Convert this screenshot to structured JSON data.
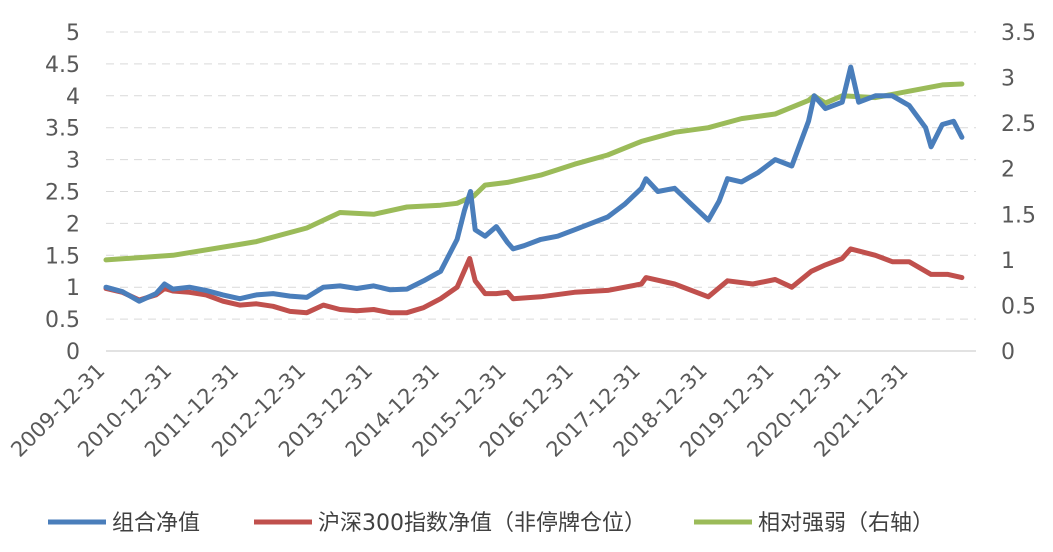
{
  "chart_data": {
    "type": "line",
    "title": "",
    "xlabel": "",
    "ylabel": "",
    "x_tick_labels": [
      "2009-12-31",
      "2010-12-31",
      "2011-12-31",
      "2012-12-31",
      "2013-12-31",
      "2014-12-31",
      "2015-12-31",
      "2016-12-31",
      "2017-12-31",
      "2018-12-31",
      "2019-12-31",
      "2020-12-31",
      "2021-12-31"
    ],
    "y_left": {
      "ticks": [
        "0",
        "0.5",
        "1",
        "1.5",
        "2",
        "2.5",
        "3",
        "3.5",
        "4",
        "4.5",
        "5"
      ],
      "ylim": [
        0,
        5
      ]
    },
    "y_right": {
      "ticks": [
        "0",
        "0.5",
        "1",
        "1.5",
        "2",
        "2.5",
        "3",
        "3.5"
      ],
      "ylim": [
        0,
        3.5
      ]
    },
    "grid": "horizontal-dashed",
    "legend_position": "bottom",
    "series": [
      {
        "name": "组合净值",
        "axis": "left",
        "color": "#4a7ebb",
        "x": [
          "2009-12-31",
          "2010-03-31",
          "2010-06-30",
          "2010-09-30",
          "2010-11-15",
          "2010-12-31",
          "2011-03-31",
          "2011-06-30",
          "2011-09-30",
          "2011-12-31",
          "2012-03-31",
          "2012-06-30",
          "2012-09-30",
          "2012-12-31",
          "2013-03-31",
          "2013-06-30",
          "2013-09-30",
          "2013-12-31",
          "2014-03-31",
          "2014-06-30",
          "2014-09-30",
          "2014-12-31",
          "2015-03-31",
          "2015-05-10",
          "2015-06-12",
          "2015-07-08",
          "2015-08-31",
          "2015-10-31",
          "2015-12-31",
          "2016-01-31",
          "2016-03-31",
          "2016-06-30",
          "2016-09-30",
          "2016-12-31",
          "2017-03-31",
          "2017-06-30",
          "2017-09-30",
          "2017-12-31",
          "2018-01-25",
          "2018-03-31",
          "2018-06-30",
          "2018-09-30",
          "2018-12-31",
          "2019-02-28",
          "2019-04-15",
          "2019-06-30",
          "2019-09-30",
          "2019-12-31",
          "2020-03-31",
          "2020-06-30",
          "2020-07-31",
          "2020-09-30",
          "2020-12-31",
          "2021-02-15",
          "2021-03-31",
          "2021-06-30",
          "2021-09-30",
          "2021-12-31",
          "2022-03-31",
          "2022-04-30",
          "2022-06-30",
          "2022-08-31",
          "2022-10-15"
        ],
        "y": [
          1.0,
          0.93,
          0.78,
          0.9,
          1.05,
          0.97,
          1.0,
          0.95,
          0.88,
          0.82,
          0.88,
          0.9,
          0.86,
          0.84,
          1.0,
          1.02,
          0.98,
          1.02,
          0.96,
          0.97,
          1.1,
          1.25,
          1.75,
          2.2,
          2.5,
          1.9,
          1.8,
          1.95,
          1.7,
          1.6,
          1.65,
          1.75,
          1.8,
          1.9,
          2.0,
          2.1,
          2.3,
          2.55,
          2.7,
          2.5,
          2.55,
          2.3,
          2.05,
          2.35,
          2.7,
          2.65,
          2.8,
          3.0,
          2.9,
          3.6,
          4.0,
          3.8,
          3.9,
          4.45,
          3.9,
          4.0,
          4.0,
          3.85,
          3.5,
          3.2,
          3.55,
          3.6,
          3.35
        ]
      },
      {
        "name": "沪深300指数净值（非停牌仓位）",
        "axis": "left",
        "color": "#c0504d",
        "x": [
          "2009-12-31",
          "2010-03-31",
          "2010-06-30",
          "2010-09-30",
          "2010-11-15",
          "2010-12-31",
          "2011-03-31",
          "2011-06-30",
          "2011-09-30",
          "2011-12-31",
          "2012-03-31",
          "2012-06-30",
          "2012-09-30",
          "2012-12-31",
          "2013-03-31",
          "2013-06-30",
          "2013-09-30",
          "2013-12-31",
          "2014-03-31",
          "2014-06-30",
          "2014-09-30",
          "2014-12-31",
          "2015-03-31",
          "2015-06-08",
          "2015-07-08",
          "2015-08-31",
          "2015-10-31",
          "2015-12-31",
          "2016-01-31",
          "2016-06-30",
          "2016-12-31",
          "2017-06-30",
          "2017-12-31",
          "2018-01-25",
          "2018-06-30",
          "2018-12-31",
          "2019-04-15",
          "2019-08-31",
          "2019-12-31",
          "2020-03-31",
          "2020-07-15",
          "2020-09-30",
          "2020-12-31",
          "2021-02-15",
          "2021-06-30",
          "2021-09-30",
          "2021-12-31",
          "2022-04-30",
          "2022-07-31",
          "2022-10-15"
        ],
        "y": [
          0.98,
          0.92,
          0.8,
          0.88,
          0.98,
          0.94,
          0.92,
          0.88,
          0.78,
          0.72,
          0.74,
          0.7,
          0.62,
          0.6,
          0.72,
          0.65,
          0.63,
          0.65,
          0.6,
          0.6,
          0.68,
          0.82,
          1.0,
          1.45,
          1.1,
          0.9,
          0.9,
          0.92,
          0.82,
          0.85,
          0.92,
          0.95,
          1.05,
          1.15,
          1.05,
          0.85,
          1.1,
          1.05,
          1.12,
          1.0,
          1.25,
          1.35,
          1.45,
          1.6,
          1.5,
          1.4,
          1.4,
          1.2,
          1.2,
          1.15
        ]
      },
      {
        "name": "相对强弱（右轴）",
        "axis": "right",
        "color": "#9bbb59",
        "x": [
          "2009-12-31",
          "2010-12-31",
          "2011-12-31",
          "2012-03-31",
          "2012-12-31",
          "2013-06-30",
          "2013-12-31",
          "2014-06-30",
          "2014-12-31",
          "2015-03-31",
          "2015-06-30",
          "2015-08-31",
          "2015-12-31",
          "2016-06-30",
          "2016-12-31",
          "2017-06-30",
          "2017-12-31",
          "2018-06-30",
          "2018-12-31",
          "2019-06-30",
          "2019-12-31",
          "2020-06-30",
          "2020-07-31",
          "2020-09-30",
          "2020-12-31",
          "2021-06-30",
          "2021-12-31",
          "2022-06-30",
          "2022-10-15"
        ],
        "y": [
          1.0,
          1.05,
          1.17,
          1.2,
          1.35,
          1.52,
          1.5,
          1.58,
          1.6,
          1.62,
          1.7,
          1.82,
          1.85,
          1.93,
          2.05,
          2.15,
          2.3,
          2.4,
          2.45,
          2.55,
          2.6,
          2.75,
          2.8,
          2.72,
          2.8,
          2.78,
          2.85,
          2.92,
          2.93
        ]
      }
    ]
  }
}
